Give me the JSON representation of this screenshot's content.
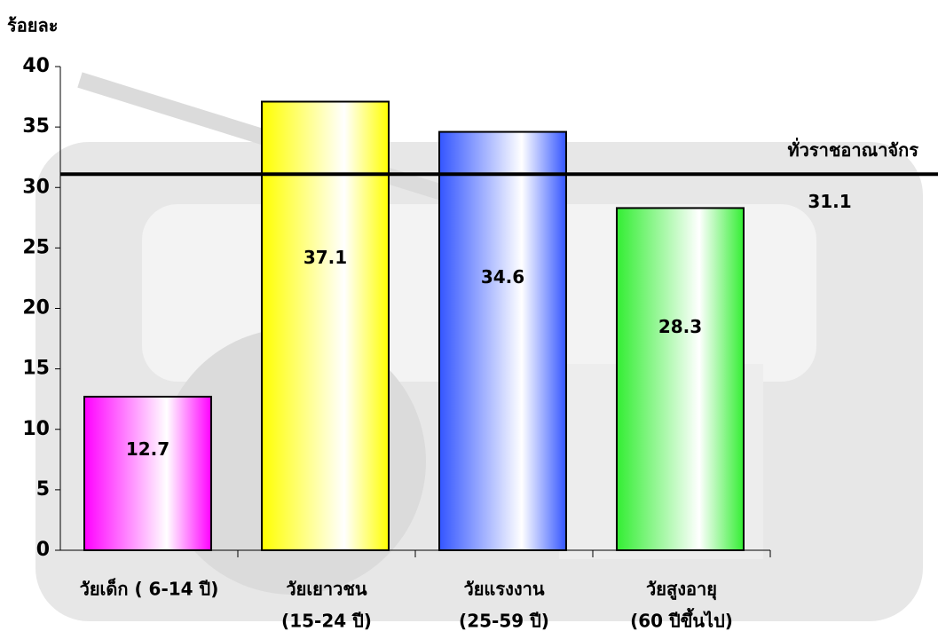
{
  "chart_data": {
    "type": "bar",
    "y_label": "ร้อยละ",
    "categories": [
      [
        "วัยเด็ก ( 6-14 ปี)"
      ],
      [
        "วัยเยาวชน",
        "(15-24 ปี)"
      ],
      [
        "วัยแรงงาน",
        "(25-59 ปี)"
      ],
      [
        "วัยสูงอายุ",
        "(60 ปีขึ้นไป)"
      ]
    ],
    "values": [
      12.7,
      37.1,
      34.6,
      28.3
    ],
    "colors": [
      "#ff00ff",
      "#ffff00",
      "#3355ff",
      "#33ee33"
    ],
    "ylim": [
      0,
      40
    ],
    "yticks": [
      0,
      5,
      10,
      15,
      20,
      25,
      30,
      35,
      40
    ],
    "reference_line": {
      "value": 31.1,
      "label": "ทั่วราชอาณาจักร"
    }
  }
}
